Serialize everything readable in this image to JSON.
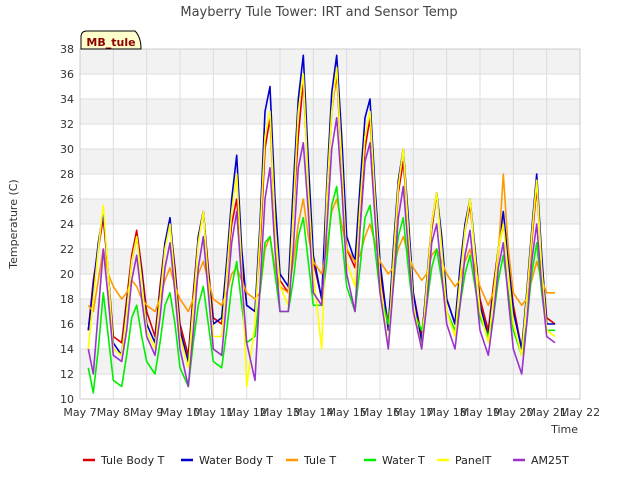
{
  "chart_data": {
    "type": "line",
    "title": "Mayberry Tule Tower: IRT and Sensor Temp",
    "xlabel": "Time",
    "ylabel": "Temperature (C)",
    "site_tag": "MB_tule",
    "ylim": [
      10,
      38
    ],
    "xlim": [
      7,
      22
    ],
    "yticks": [
      10,
      12,
      14,
      16,
      18,
      20,
      22,
      24,
      26,
      28,
      30,
      32,
      34,
      36,
      38
    ],
    "x_ticks": [
      {
        "value": 7,
        "label": "May 7"
      },
      {
        "value": 8,
        "label": "May 8"
      },
      {
        "value": 9,
        "label": "May 9"
      },
      {
        "value": 10,
        "label": "May 10"
      },
      {
        "value": 11,
        "label": "May 11"
      },
      {
        "value": 12,
        "label": "May 12"
      },
      {
        "value": 13,
        "label": "May 13"
      },
      {
        "value": 14,
        "label": "May 14"
      },
      {
        "value": 15,
        "label": "May 15"
      },
      {
        "value": 16,
        "label": "May 16"
      },
      {
        "value": 17,
        "label": "May 17"
      },
      {
        "value": 18,
        "label": "May 18"
      },
      {
        "value": 19,
        "label": "May 19"
      },
      {
        "value": 20,
        "label": "May 20"
      },
      {
        "value": 21,
        "label": "May 21"
      },
      {
        "value": 22,
        "label": "May 22"
      }
    ],
    "grid": true,
    "legend_position": "bottom",
    "series": [
      {
        "name": "Tule Body T",
        "color": "#dd0000",
        "x": [
          7.25,
          7.4,
          7.55,
          7.7,
          7.85,
          8.0,
          8.25,
          8.4,
          8.55,
          8.7,
          8.85,
          9.0,
          9.25,
          9.4,
          9.55,
          9.7,
          9.85,
          10.0,
          10.25,
          10.4,
          10.55,
          10.7,
          10.85,
          11.0,
          11.25,
          11.4,
          11.55,
          11.7,
          11.85,
          12.0,
          12.25,
          12.4,
          12.55,
          12.7,
          12.85,
          13.0,
          13.25,
          13.4,
          13.55,
          13.7,
          13.85,
          14.0,
          14.25,
          14.4,
          14.55,
          14.7,
          14.85,
          15.0,
          15.25,
          15.4,
          15.55,
          15.7,
          15.85,
          16.0,
          16.25,
          16.4,
          16.55,
          16.7,
          16.85,
          17.0,
          17.25,
          17.4,
          17.55,
          17.7,
          17.85,
          18.0,
          18.25,
          18.4,
          18.55,
          18.7,
          18.85,
          19.0,
          19.25,
          19.4,
          19.55,
          19.7,
          19.85,
          20.0,
          20.25,
          20.4,
          20.55,
          20.7,
          20.85,
          21.0,
          21.25
        ],
        "y": [
          15.5,
          19.5,
          22.0,
          24.5,
          20.0,
          15.0,
          14.5,
          18.0,
          21.5,
          23.5,
          20.5,
          17.0,
          15.0,
          19.0,
          22.5,
          24.0,
          20.5,
          16.0,
          13.5,
          18.5,
          23.0,
          25.0,
          20.5,
          16.5,
          16.0,
          20.0,
          24.0,
          26.0,
          21.0,
          17.5,
          17.0,
          22.0,
          30.0,
          32.5,
          24.0,
          19.5,
          18.5,
          25.0,
          31.0,
          35.5,
          27.5,
          21.0,
          18.0,
          26.0,
          33.0,
          36.0,
          29.0,
          22.0,
          20.5,
          25.0,
          30.0,
          32.5,
          26.0,
          20.0,
          16.0,
          21.0,
          26.5,
          29.0,
          24.0,
          18.5,
          15.0,
          19.0,
          23.5,
          26.5,
          22.5,
          18.0,
          16.0,
          20.0,
          23.5,
          25.5,
          22.0,
          18.0,
          15.5,
          19.0,
          22.0,
          24.0,
          21.0,
          17.5,
          14.0,
          18.0,
          22.5,
          27.0,
          21.0,
          16.5,
          16.0
        ]
      },
      {
        "name": "Water Body T",
        "color": "#0000cc",
        "x": [
          7.25,
          7.4,
          7.55,
          7.7,
          7.85,
          8.0,
          8.25,
          8.4,
          8.55,
          8.7,
          8.85,
          9.0,
          9.25,
          9.4,
          9.55,
          9.7,
          9.85,
          10.0,
          10.25,
          10.4,
          10.55,
          10.7,
          10.85,
          11.0,
          11.25,
          11.4,
          11.55,
          11.7,
          11.85,
          12.0,
          12.25,
          12.4,
          12.55,
          12.7,
          12.85,
          13.0,
          13.25,
          13.4,
          13.55,
          13.7,
          13.85,
          14.0,
          14.25,
          14.4,
          14.55,
          14.7,
          14.85,
          15.0,
          15.25,
          15.4,
          15.55,
          15.7,
          15.85,
          16.0,
          16.25,
          16.4,
          16.55,
          16.7,
          16.85,
          17.0,
          17.25,
          17.4,
          17.55,
          17.7,
          17.85,
          18.0,
          18.25,
          18.4,
          18.55,
          18.7,
          18.85,
          19.0,
          19.25,
          19.4,
          19.55,
          19.7,
          19.85,
          20.0,
          20.25,
          20.4,
          20.55,
          20.7,
          20.85,
          21.0,
          21.25
        ],
        "y": [
          15.5,
          19.0,
          22.5,
          25.0,
          20.0,
          14.5,
          13.5,
          17.5,
          21.0,
          23.0,
          20.0,
          16.0,
          14.5,
          18.5,
          22.5,
          24.5,
          20.0,
          15.5,
          13.0,
          18.0,
          23.0,
          25.0,
          20.0,
          16.0,
          16.5,
          21.0,
          26.0,
          29.5,
          22.0,
          17.5,
          17.0,
          24.0,
          33.0,
          35.0,
          26.0,
          20.0,
          19.0,
          27.0,
          34.0,
          37.5,
          29.0,
          21.5,
          18.0,
          27.0,
          34.5,
          37.5,
          31.0,
          23.0,
          21.0,
          27.0,
          32.5,
          34.0,
          27.0,
          21.0,
          15.5,
          22.0,
          27.5,
          30.0,
          24.5,
          18.5,
          14.5,
          19.5,
          24.0,
          26.5,
          23.0,
          18.0,
          16.0,
          20.5,
          24.0,
          26.0,
          22.0,
          17.5,
          15.0,
          18.5,
          22.0,
          25.0,
          21.0,
          17.0,
          14.0,
          18.5,
          23.5,
          28.0,
          21.5,
          16.0,
          16.0
        ]
      },
      {
        "name": "Tule T",
        "color": "#ff9900",
        "x": [
          7.25,
          7.4,
          7.55,
          7.7,
          7.85,
          8.0,
          8.25,
          8.4,
          8.55,
          8.7,
          8.85,
          9.0,
          9.25,
          9.4,
          9.55,
          9.7,
          9.85,
          10.0,
          10.25,
          10.4,
          10.55,
          10.7,
          10.85,
          11.0,
          11.25,
          11.4,
          11.55,
          11.7,
          11.85,
          12.0,
          12.25,
          12.4,
          12.55,
          12.7,
          12.85,
          13.0,
          13.25,
          13.4,
          13.55,
          13.7,
          13.85,
          14.0,
          14.25,
          14.4,
          14.55,
          14.7,
          14.85,
          15.0,
          15.25,
          15.4,
          15.55,
          15.7,
          15.85,
          16.0,
          16.25,
          16.4,
          16.55,
          16.7,
          16.85,
          17.0,
          17.25,
          17.4,
          17.55,
          17.7,
          17.85,
          18.0,
          18.25,
          18.4,
          18.55,
          18.7,
          18.85,
          19.0,
          19.25,
          19.4,
          19.55,
          19.7,
          19.85,
          20.0,
          20.25,
          20.4,
          20.55,
          20.7,
          20.85,
          21.0,
          21.25
        ],
        "y": [
          17.5,
          17.0,
          19.5,
          22.0,
          20.0,
          19.0,
          18.0,
          18.5,
          19.5,
          19.0,
          18.0,
          17.5,
          17.0,
          18.0,
          19.5,
          20.5,
          19.0,
          18.0,
          17.0,
          18.0,
          20.0,
          21.0,
          19.5,
          18.0,
          17.5,
          18.5,
          20.0,
          20.5,
          19.5,
          18.5,
          18.0,
          18.5,
          22.0,
          23.0,
          20.5,
          19.0,
          18.5,
          21.0,
          24.0,
          26.0,
          23.0,
          21.0,
          20.0,
          22.0,
          25.0,
          26.0,
          24.0,
          22.0,
          21.0,
          21.5,
          23.0,
          24.0,
          22.5,
          21.0,
          20.0,
          20.5,
          22.0,
          23.0,
          21.5,
          20.5,
          19.5,
          20.0,
          21.5,
          22.0,
          21.0,
          20.0,
          19.0,
          19.5,
          21.0,
          22.0,
          20.5,
          19.0,
          17.5,
          18.5,
          21.5,
          28.0,
          22.0,
          18.5,
          17.5,
          18.0,
          19.5,
          21.0,
          19.5,
          18.5,
          18.5
        ]
      },
      {
        "name": "Water T",
        "color": "#00ee00",
        "x": [
          7.25,
          7.4,
          7.55,
          7.7,
          7.85,
          8.0,
          8.25,
          8.4,
          8.55,
          8.7,
          8.85,
          9.0,
          9.25,
          9.4,
          9.55,
          9.7,
          9.85,
          10.0,
          10.25,
          10.4,
          10.55,
          10.7,
          10.85,
          11.0,
          11.25,
          11.4,
          11.55,
          11.7,
          11.85,
          12.0,
          12.25,
          12.4,
          12.55,
          12.7,
          12.85,
          13.0,
          13.25,
          13.4,
          13.55,
          13.7,
          13.85,
          14.0,
          14.25,
          14.4,
          14.55,
          14.7,
          14.85,
          15.0,
          15.25,
          15.4,
          15.55,
          15.7,
          15.85,
          16.0,
          16.25,
          16.4,
          16.55,
          16.7,
          16.85,
          17.0,
          17.25,
          17.4,
          17.55,
          17.7,
          17.85,
          18.0,
          18.25,
          18.4,
          18.55,
          18.7,
          18.85,
          19.0,
          19.25,
          19.4,
          19.55,
          19.7,
          19.85,
          20.0,
          20.25,
          20.4,
          20.55,
          20.7,
          20.85,
          21.0,
          21.25
        ],
        "y": [
          12.5,
          10.5,
          14.0,
          18.5,
          15.0,
          11.5,
          11.0,
          13.5,
          16.5,
          17.5,
          15.0,
          13.0,
          12.0,
          14.5,
          17.5,
          18.5,
          16.0,
          12.5,
          11.0,
          14.5,
          17.5,
          19.0,
          16.0,
          13.0,
          12.5,
          15.5,
          19.0,
          21.0,
          17.5,
          14.5,
          15.0,
          18.5,
          22.5,
          23.0,
          20.0,
          17.0,
          17.0,
          19.5,
          23.0,
          24.5,
          21.0,
          17.5,
          17.5,
          21.0,
          25.5,
          27.0,
          23.0,
          19.0,
          17.0,
          20.5,
          24.5,
          25.5,
          22.0,
          18.5,
          16.0,
          19.0,
          23.0,
          24.5,
          20.5,
          17.0,
          15.5,
          17.5,
          20.5,
          22.0,
          19.5,
          17.0,
          15.5,
          17.5,
          20.0,
          21.5,
          19.0,
          16.5,
          15.0,
          16.5,
          19.5,
          21.5,
          18.5,
          15.5,
          13.5,
          16.0,
          20.0,
          22.5,
          18.5,
          15.5,
          15.5
        ]
      },
      {
        "name": "PanelT",
        "color": "#ffff00",
        "x": [
          7.25,
          7.4,
          7.55,
          7.7,
          7.85,
          8.0,
          8.25,
          8.4,
          8.55,
          8.7,
          8.85,
          9.0,
          9.25,
          9.4,
          9.55,
          9.7,
          9.85,
          10.0,
          10.25,
          10.4,
          10.55,
          10.7,
          10.85,
          11.0,
          11.25,
          11.4,
          11.55,
          11.7,
          11.85,
          12.0,
          12.25,
          12.4,
          12.55,
          12.7,
          12.85,
          13.0,
          13.25,
          13.4,
          13.55,
          13.7,
          13.85,
          14.0,
          14.25,
          14.4,
          14.55,
          14.7,
          14.85,
          15.0,
          15.25,
          15.4,
          15.55,
          15.7,
          15.85,
          16.0,
          16.25,
          16.4,
          16.55,
          16.7,
          16.85,
          17.0,
          17.25,
          17.4,
          17.55,
          17.7,
          17.85,
          18.0,
          18.25,
          18.4,
          18.55,
          18.7,
          18.85,
          19.0,
          19.25,
          19.4,
          19.55,
          19.7,
          19.85,
          20.0,
          20.25,
          20.4,
          20.55,
          20.7,
          20.85,
          21.0,
          21.25
        ],
        "y": [
          14.0,
          18.0,
          22.0,
          25.5,
          20.0,
          14.0,
          13.5,
          17.0,
          21.0,
          23.0,
          19.5,
          15.5,
          14.0,
          18.0,
          22.0,
          24.0,
          19.5,
          15.0,
          12.5,
          17.5,
          22.5,
          25.0,
          19.5,
          15.0,
          15.0,
          20.0,
          25.0,
          28.0,
          20.5,
          11.0,
          16.0,
          23.0,
          31.0,
          33.0,
          24.0,
          19.0,
          17.5,
          25.0,
          33.0,
          36.0,
          27.0,
          20.0,
          14.0,
          26.0,
          33.0,
          36.5,
          29.0,
          21.0,
          19.0,
          25.5,
          31.0,
          33.0,
          26.0,
          19.5,
          14.0,
          21.0,
          27.0,
          30.0,
          23.5,
          17.5,
          14.0,
          19.0,
          24.0,
          26.5,
          22.0,
          17.0,
          15.0,
          19.5,
          23.5,
          26.0,
          21.5,
          17.0,
          14.5,
          18.0,
          22.0,
          24.0,
          20.0,
          16.0,
          13.5,
          18.0,
          23.0,
          27.5,
          20.5,
          15.5,
          15.0
        ]
      },
      {
        "name": "AM25T",
        "color": "#9933cc",
        "x": [
          7.25,
          7.4,
          7.55,
          7.7,
          7.85,
          8.0,
          8.25,
          8.4,
          8.55,
          8.7,
          8.85,
          9.0,
          9.25,
          9.4,
          9.55,
          9.7,
          9.85,
          10.0,
          10.25,
          10.4,
          10.55,
          10.7,
          10.85,
          11.0,
          11.25,
          11.4,
          11.55,
          11.7,
          11.85,
          12.0,
          12.25,
          12.4,
          12.55,
          12.7,
          12.85,
          13.0,
          13.25,
          13.4,
          13.55,
          13.7,
          13.85,
          14.0,
          14.25,
          14.4,
          14.55,
          14.7,
          14.85,
          15.0,
          15.25,
          15.4,
          15.55,
          15.7,
          15.85,
          16.0,
          16.25,
          16.4,
          16.55,
          16.7,
          16.85,
          17.0,
          17.25,
          17.4,
          17.55,
          17.7,
          17.85,
          18.0,
          18.25,
          18.4,
          18.55,
          18.7,
          18.85,
          19.0,
          19.25,
          19.4,
          19.55,
          19.7,
          19.85,
          20.0,
          20.25,
          20.4,
          20.55,
          20.7,
          20.85,
          21.0,
          21.25
        ],
        "y": [
          14.0,
          12.0,
          17.0,
          22.0,
          18.0,
          13.5,
          13.0,
          15.5,
          19.5,
          21.5,
          18.0,
          15.0,
          13.5,
          16.5,
          20.5,
          22.5,
          18.5,
          14.0,
          11.0,
          15.5,
          20.5,
          23.0,
          18.5,
          14.0,
          13.5,
          18.0,
          22.5,
          25.0,
          19.5,
          14.5,
          11.5,
          19.0,
          26.0,
          28.5,
          22.0,
          17.0,
          17.0,
          22.0,
          28.5,
          30.5,
          25.0,
          18.5,
          17.5,
          23.5,
          30.0,
          32.5,
          27.0,
          20.0,
          17.0,
          23.5,
          29.0,
          30.5,
          24.5,
          18.5,
          14.0,
          19.0,
          24.5,
          27.0,
          22.0,
          17.0,
          14.0,
          17.5,
          22.5,
          24.0,
          20.0,
          16.0,
          14.0,
          17.5,
          21.5,
          23.5,
          19.5,
          15.5,
          13.5,
          16.5,
          20.5,
          22.5,
          18.0,
          14.0,
          12.0,
          16.0,
          21.0,
          24.0,
          19.0,
          15.0,
          14.5
        ]
      }
    ]
  }
}
